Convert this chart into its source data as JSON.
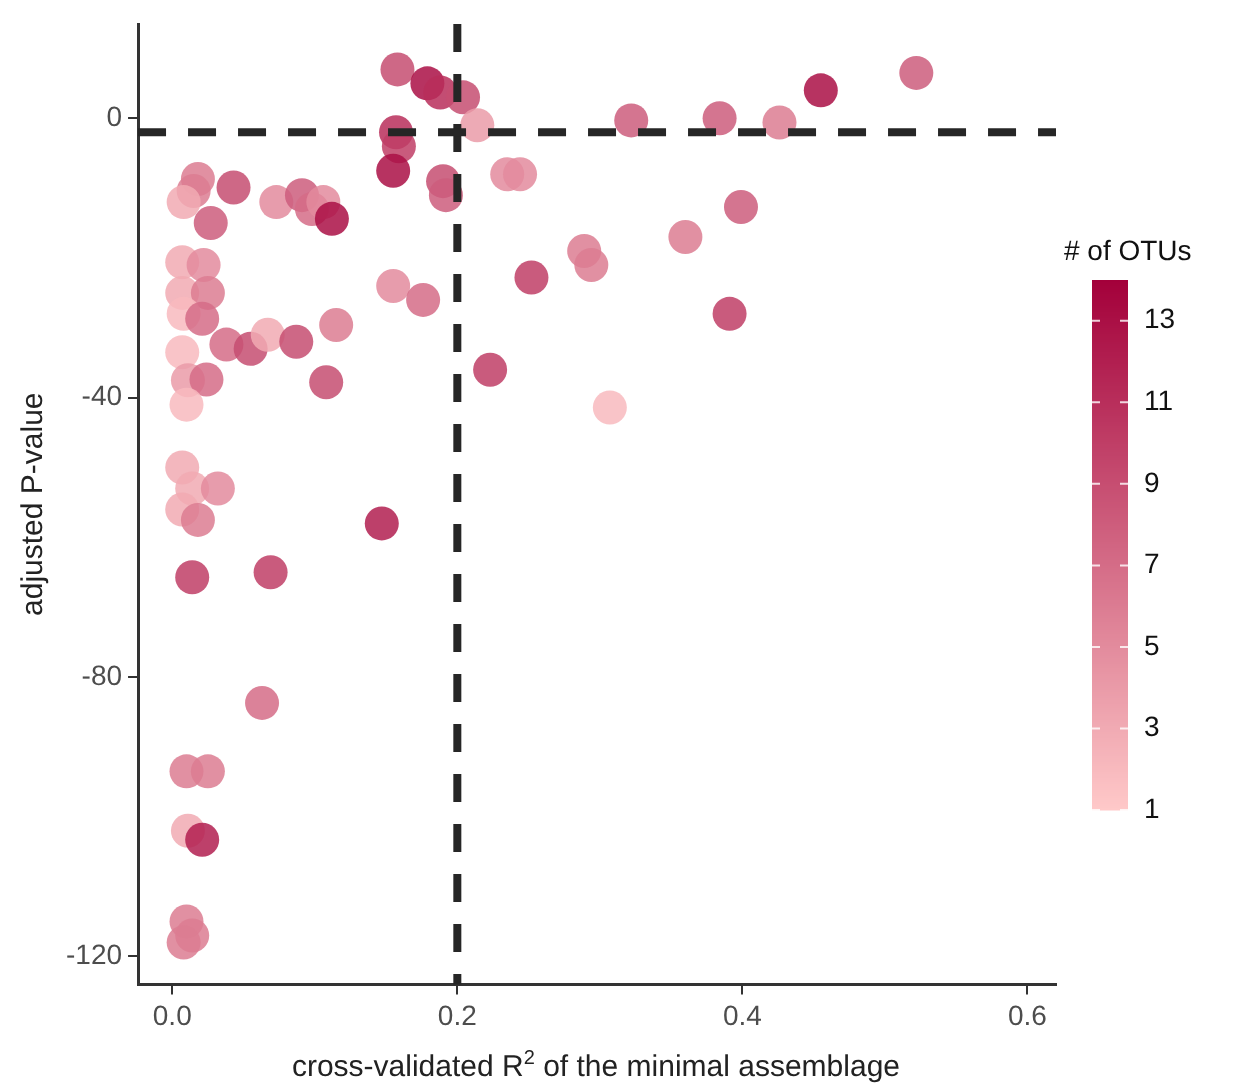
{
  "chart_data": {
    "type": "scatter",
    "xlabel": "cross-validated R$^{2}$ of the minimal assemblage",
    "ylabel": "adjusted P-value",
    "clabel": "# of OTUs",
    "xlim": [
      -0.024,
      0.62
    ],
    "ylim": [
      -124,
      13.5
    ],
    "xticks": [
      {
        "value": 0,
        "label": "0.0"
      },
      {
        "value": 0.2,
        "label": "0.2"
      },
      {
        "value": 0.4,
        "label": "0.4"
      },
      {
        "value": 0.6,
        "label": "0.6"
      }
    ],
    "yticks": [
      -120,
      -80,
      -40,
      0
    ],
    "clim": [
      1,
      14
    ],
    "cticks": [
      1,
      3,
      5,
      7,
      9,
      11,
      13
    ],
    "grid": false,
    "legend": false,
    "marker": "circle",
    "ref_lines": [
      {
        "axis": "x",
        "value": 0.2,
        "line_style": "dashed",
        "color": "#262626"
      },
      {
        "axis": "y",
        "value": -2,
        "line_style": "dashed",
        "color": "#262626"
      }
    ],
    "x": [
      0.158,
      0.179,
      0.188,
      0.204,
      0.214,
      0.157,
      0.159,
      0.155,
      0.19,
      0.192,
      0.235,
      0.244,
      0.018,
      0.015,
      0.008,
      0.043,
      0.027,
      0.073,
      0.091,
      0.098,
      0.106,
      0.112,
      0.007,
      0.022,
      0.007,
      0.025,
      0.008,
      0.021,
      0.007,
      0.011,
      0.024,
      0.01,
      0.038,
      0.055,
      0.067,
      0.087,
      0.115,
      0.108,
      0.155,
      0.176,
      0.252,
      0.223,
      0.289,
      0.294,
      0.307,
      0.322,
      0.384,
      0.426,
      0.455,
      0.522,
      0.399,
      0.36,
      0.391,
      0.007,
      0.014,
      0.032,
      0.007,
      0.018,
      0.147,
      0.014,
      0.069,
      0.063,
      0.01,
      0.025,
      0.011,
      0.021,
      0.01,
      0.014,
      0.008
    ],
    "values": [
      7,
      5,
      3.7,
      3,
      -1,
      -2,
      -4,
      -7.5,
      -9,
      -11,
      -8,
      -8,
      -8.7,
      -10.4,
      -12,
      -9.9,
      -15,
      -12,
      -11,
      -13,
      -12,
      -14.4,
      -20.6,
      -21,
      -25,
      -25,
      -28,
      -28.7,
      -33.5,
      -37.5,
      -37.4,
      -41,
      -32.4,
      -33,
      -31,
      -32,
      -29.6,
      -37.8,
      -24,
      -26,
      -22.8,
      -36,
      -19,
      -21,
      -41.4,
      -0.3,
      0,
      -0.6,
      4,
      6.5,
      -12.7,
      -17,
      -28,
      -50,
      -53,
      -53,
      -56,
      -57.5,
      -58,
      -65.7,
      -65,
      -83.7,
      -93.5,
      -93.5,
      -102,
      -103.3,
      -115,
      -117,
      -118
    ],
    "cvalues": [
      9,
      13,
      11,
      9,
      4,
      11,
      10,
      13,
      9,
      8,
      5,
      5,
      6,
      6,
      3,
      9,
      8,
      5,
      8,
      7,
      5,
      13,
      3,
      5,
      3,
      6,
      2,
      7,
      2,
      4,
      7,
      2,
      7,
      9,
      3,
      9,
      6,
      9,
      5,
      7,
      10,
      10,
      6,
      6,
      2,
      8,
      8,
      6,
      13,
      8,
      8,
      6,
      10,
      3,
      3,
      5,
      3,
      6,
      12,
      10,
      10,
      7,
      6,
      6,
      3,
      12,
      6,
      6,
      6
    ]
  }
}
